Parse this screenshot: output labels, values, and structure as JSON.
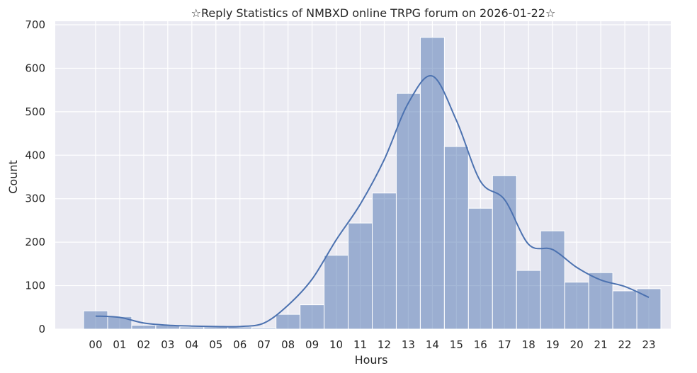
{
  "chart_data": {
    "type": "bar",
    "title": "☆Reply Statistics of NMBXD online TRPG forum on 2026-01-22☆",
    "xlabel": "Hours",
    "ylabel": "Count",
    "categories": [
      "00",
      "01",
      "02",
      "03",
      "04",
      "05",
      "06",
      "07",
      "08",
      "09",
      "10",
      "11",
      "12",
      "13",
      "14",
      "15",
      "16",
      "17",
      "18",
      "19",
      "20",
      "21",
      "22",
      "23"
    ],
    "values": [
      42,
      29,
      9,
      9,
      5,
      5,
      5,
      3,
      34,
      56,
      170,
      244,
      313,
      542,
      671,
      420,
      278,
      353,
      135,
      226,
      108,
      130,
      88,
      93
    ],
    "kde": [
      30,
      27,
      14,
      9,
      7,
      6,
      6,
      14,
      55,
      115,
      205,
      287,
      390,
      520,
      582,
      480,
      340,
      298,
      195,
      183,
      142,
      113,
      98,
      73
    ],
    "ylim": [
      0,
      700
    ],
    "yticks": [
      0,
      100,
      200,
      300,
      400,
      500,
      600,
      700
    ],
    "grid": true,
    "colors": {
      "background": "#eaeaf2",
      "bar_fill": "#4c72b0",
      "bar_opacity": 0.5,
      "line": "#4c72b0",
      "grid": "#ffffff"
    }
  }
}
